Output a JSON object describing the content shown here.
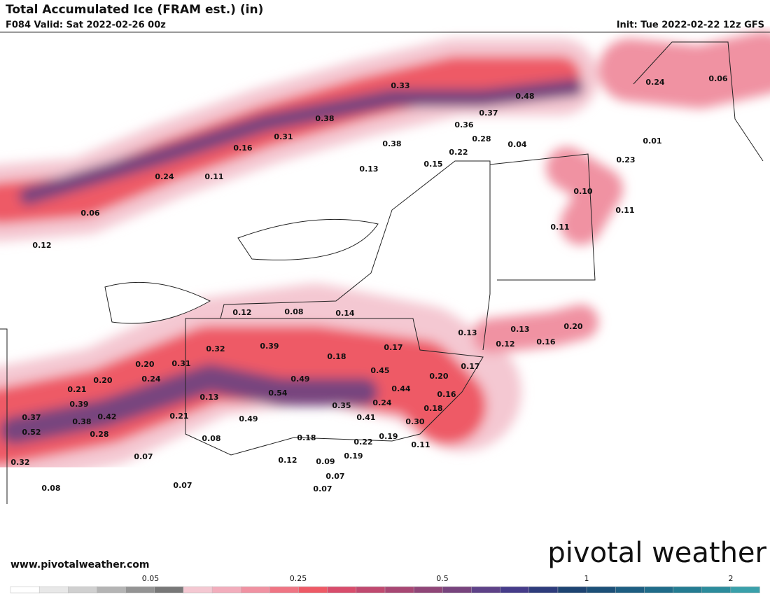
{
  "header": {
    "title": "Total Accumulated Ice (FRAM est.) (in)",
    "valid": "F084 Valid: Sat 2022-02-26 00z",
    "init": "Init: Tue 2022-02-22 12z GFS"
  },
  "map": {
    "labels": [
      "0.33",
      "0.48",
      "0.24",
      "0.06",
      "0.37",
      "0.38",
      "0.36",
      "0.31",
      "0.28",
      "0.38",
      "0.04",
      "0.16",
      "0.22",
      "0.01",
      "0.23",
      "0.13",
      "0.15",
      "0.24",
      "0.11",
      "0.10",
      "0.06",
      "0.11",
      "0.11",
      "0.12",
      "0.12",
      "0.08",
      "0.14",
      "0.13",
      "0.13",
      "0.20",
      "0.32",
      "0.39",
      "0.17",
      "0.12",
      "0.16",
      "0.18",
      "0.20",
      "0.31",
      "0.45",
      "0.17",
      "0.20",
      "0.24",
      "0.49",
      "0.21",
      "0.20",
      "0.44",
      "0.16",
      "0.54",
      "0.13",
      "0.39",
      "0.35",
      "0.24",
      "0.18",
      "0.37",
      "0.42",
      "0.21",
      "0.38",
      "0.41",
      "0.30",
      "0.49",
      "0.52",
      "0.28",
      "0.08",
      "0.18",
      "0.22",
      "0.19",
      "0.11",
      "0.07",
      "0.19",
      "0.32",
      "0.12",
      "0.09",
      "0.07",
      "0.08",
      "0.07",
      "0.07"
    ]
  },
  "footer": {
    "website": "www.pivotalweather.com",
    "logo": "pivotal weather"
  },
  "legend": {
    "ticks": [
      "0.05",
      "0.25",
      "0.5",
      "1",
      "2"
    ],
    "colors": [
      "#ffffff",
      "#e8e8e8",
      "#d0d0d0",
      "#b4b4b4",
      "#949494",
      "#787878",
      "#f4c8d2",
      "#f2adbc",
      "#f092a2",
      "#ef7584",
      "#ee5a66",
      "#d84d6c",
      "#c04a70",
      "#a84874",
      "#904678",
      "#78447e",
      "#5e4288",
      "#463c8a",
      "#2e3c7c",
      "#1e4472",
      "#1c5078",
      "#1e5e82",
      "#206c8a",
      "#247c92",
      "#2c8c9c",
      "#3aa0aa"
    ]
  }
}
